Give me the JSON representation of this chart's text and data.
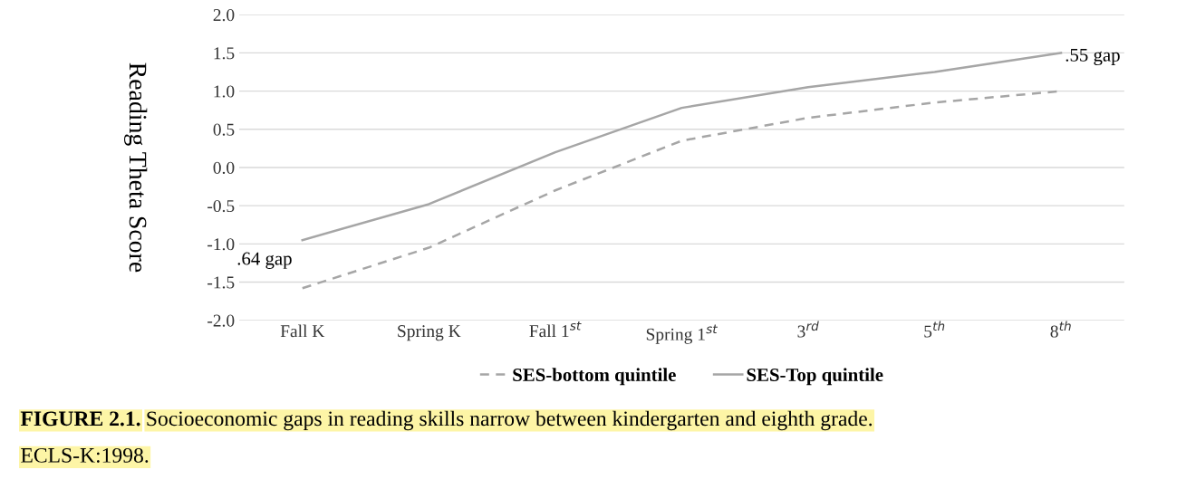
{
  "chart_data": {
    "type": "line",
    "ylabel": "Reading Theta Score",
    "categories": [
      "Fall K",
      "Spring K",
      "Fall 1$^{st}$",
      "Spring 1$^{st}$",
      "3$^{rd}$",
      "5$^{th}$",
      "8$^{th}$"
    ],
    "series": [
      {
        "name": "SES-bottom quintile",
        "color": "#a6a6a6",
        "line_style": "dashed",
        "values": [
          -1.58,
          -1.05,
          -0.3,
          0.35,
          0.65,
          0.85,
          1.0
        ]
      },
      {
        "name": "SES-Top quintile",
        "color": "#a6a6a6",
        "line_style": "solid",
        "values": [
          -0.95,
          -0.48,
          0.2,
          0.78,
          1.05,
          1.25,
          1.5
        ]
      }
    ],
    "ylim": [
      -2.0,
      2.0
    ],
    "yticks": [
      {
        "value": -2.0,
        "label": "-2.0"
      },
      {
        "value": -1.5,
        "label": "-1.5"
      },
      {
        "value": -1.0,
        "label": "-1.0"
      },
      {
        "value": -0.5,
        "label": "-0.5"
      },
      {
        "value": 0.0,
        "label": "0.0"
      },
      {
        "value": 0.5,
        "label": "0.5"
      },
      {
        "value": 1.0,
        "label": "1.0"
      },
      {
        "value": 1.5,
        "label": "1.5"
      },
      {
        "value": 2.0,
        "label": "2.0"
      }
    ],
    "grid": "y",
    "legend": "bottom",
    "marker": "none",
    "annotations": [
      ".64 gap",
      ".55 gap",
      "FIGURE 2.1.",
      "Socioeconomic gaps in reading skills narrow between kindergarten and eighth grade. ECLS-K:1998."
    ]
  }
}
